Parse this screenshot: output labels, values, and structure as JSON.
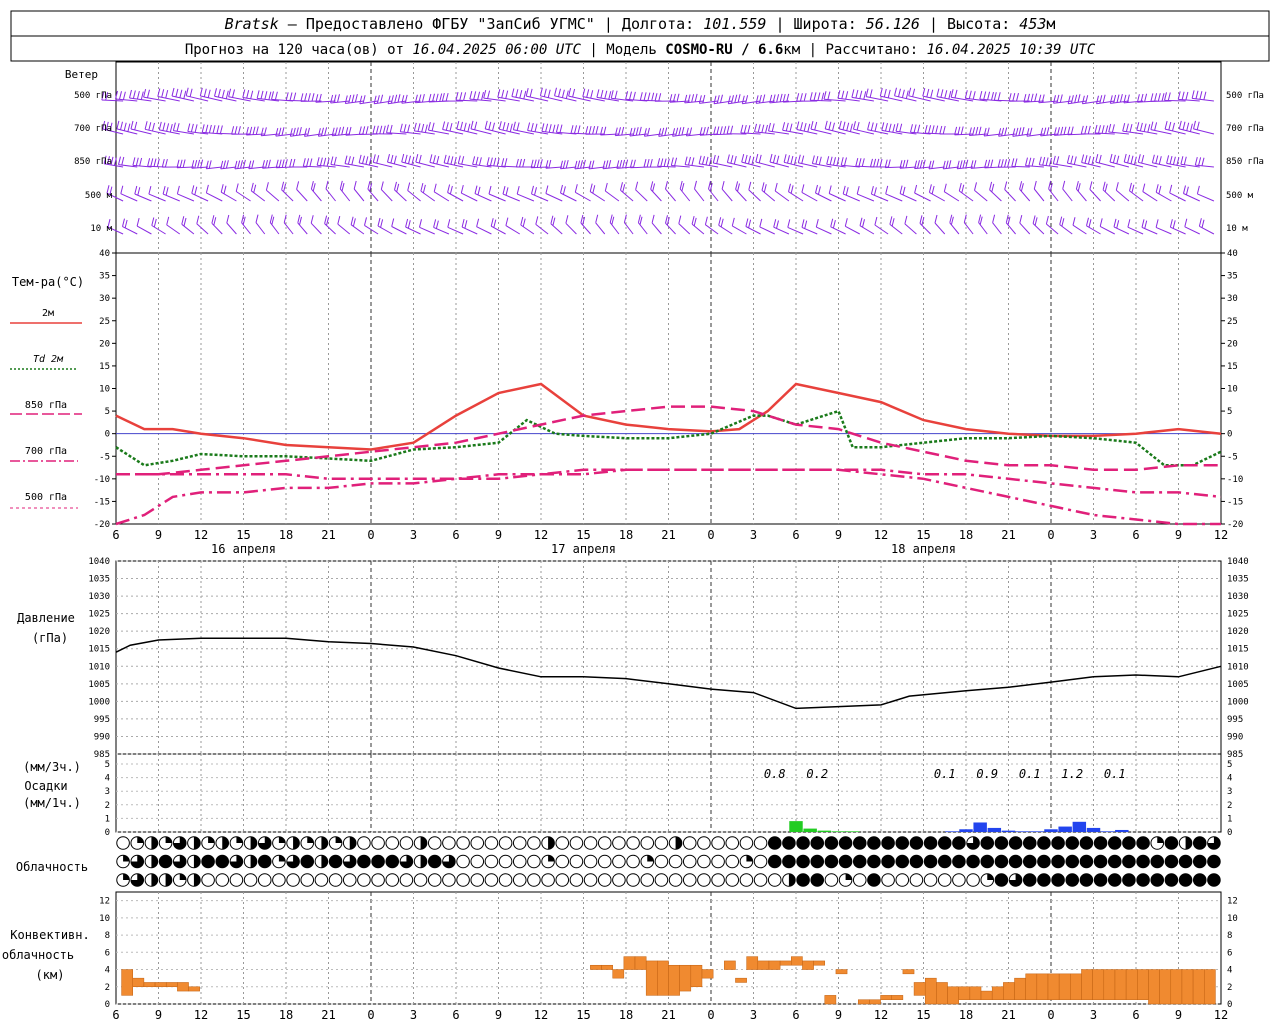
{
  "header": {
    "station": "Bratsk",
    "line1_rest": " — Предоставлено ФГБУ \"ЗапСиб УГМС\" | Долгота: ",
    "longitude": "101.559",
    "lat_label": " | Широта: ",
    "latitude": "56.126",
    "alt_label": " | Высота: ",
    "altitude": "453",
    "alt_unit": "м",
    "line2_a": "Прогноз на 120 часа(ов) от ",
    "forecast_from": "16.04.2025 06:00 UTC",
    "line2_b": "  | Модель ",
    "model": "COSMO-RU / 6.6",
    "model_unit": "км",
    "line2_c": " | Рассчитано: ",
    "computed": "16.04.2025 10:39 UTC"
  },
  "labels": {
    "wind": "Ветер",
    "temperature": "Тем-ра(°С)",
    "pressure_1": "Давление",
    "pressure_2": "(гПа)",
    "precip_1": "(мм/3ч.)",
    "precip_2": "Осадки",
    "precip_3": "(мм/1ч.)",
    "cloudiness": "Облачность",
    "convective_1": "Конвективн.",
    "convective_2": "облачность",
    "convective_3": "(км)"
  },
  "dates": [
    "16 апреля",
    "17 апреля",
    "18 апреля"
  ],
  "colors": {
    "t2m": "#e8413c",
    "td2m": "#1a7a1a",
    "t850": "#e0207a",
    "t700": "#e0207a",
    "t500": "#e0207a",
    "wind": "#8a2be2",
    "pressure": "#000000",
    "precip_green": "#22cc22",
    "precip_blue": "#2244ee",
    "convective": "#f08a30",
    "zero_line": "#4444cc"
  },
  "chart_data": [
    {
      "type": "barbs",
      "levels": [
        "500 гПа",
        "700 гПа",
        "850 гПа",
        "500 м",
        "10 м"
      ]
    },
    {
      "type": "line",
      "ylim": [
        -20,
        40
      ],
      "y_ticks": [
        -20,
        -15,
        -10,
        -5,
        0,
        5,
        10,
        15,
        20,
        25,
        30,
        35,
        40
      ],
      "x_hours": [
        0,
        3,
        6,
        9,
        12,
        15,
        18,
        21,
        24,
        27,
        30,
        33,
        36,
        39,
        42,
        45,
        48,
        51,
        54,
        57,
        60,
        63,
        66,
        69,
        72,
        75,
        78
      ],
      "x_tick_labels": [
        "6",
        "9",
        "12",
        "15",
        "18",
        "21",
        "0",
        "3",
        "6",
        "9",
        "12",
        "15",
        "18",
        "21",
        "0",
        "3",
        "6",
        "9",
        "12",
        "15",
        "18",
        "21",
        "0",
        "3",
        "6",
        "9",
        "12"
      ],
      "series": [
        {
          "name": "2м",
          "x": [
            0,
            2,
            4,
            6,
            9,
            12,
            15,
            18,
            21,
            24,
            27,
            30,
            33,
            36,
            39,
            42,
            44,
            46,
            48,
            51,
            54,
            57,
            60,
            63,
            66,
            69,
            72,
            75,
            78
          ],
          "values": [
            4,
            1,
            1,
            0,
            -1,
            -2.5,
            -3,
            -3.5,
            -2,
            4,
            9,
            11,
            4,
            2,
            1,
            0.5,
            1,
            5,
            11,
            9,
            7,
            3,
            1,
            0,
            -0.5,
            -0.5,
            0,
            1,
            0
          ]
        },
        {
          "name": "Td 2м",
          "x": [
            0,
            2,
            4,
            6,
            9,
            12,
            15,
            18,
            21,
            24,
            27,
            29,
            31,
            33,
            36,
            39,
            42,
            45,
            46,
            48,
            50,
            51,
            52,
            54,
            57,
            60,
            63,
            66,
            69,
            72,
            74,
            76,
            78
          ],
          "values": [
            -3,
            -7,
            -6,
            -4.5,
            -5,
            -5,
            -5.5,
            -6,
            -3.5,
            -3,
            -2,
            3,
            0,
            -0.5,
            -1,
            -1,
            0,
            4,
            4,
            2,
            4,
            5,
            -3,
            -3,
            -2,
            -1,
            -1,
            -0.5,
            -1,
            -2,
            -7,
            -7,
            -4
          ]
        },
        {
          "name": "850 гПа",
          "x": [
            0,
            3,
            6,
            9,
            12,
            15,
            18,
            21,
            24,
            27,
            30,
            33,
            36,
            39,
            42,
            45,
            48,
            51,
            54,
            57,
            60,
            63,
            66,
            69,
            72,
            75,
            78
          ],
          "values": [
            -9,
            -9,
            -8,
            -7,
            -6,
            -5,
            -4,
            -3,
            -2,
            0,
            2,
            4,
            5,
            6,
            6,
            5,
            2,
            1,
            -2,
            -4,
            -6,
            -7,
            -7,
            -8,
            -8,
            -7,
            -7
          ]
        },
        {
          "name": "700 гПа",
          "x": [
            0,
            3,
            6,
            9,
            12,
            15,
            18,
            21,
            24,
            27,
            30,
            33,
            36,
            39,
            42,
            45,
            48,
            51,
            54,
            57,
            60,
            63,
            66,
            69,
            72,
            75,
            78
          ],
          "values": [
            -9,
            -9,
            -9,
            -9,
            -9,
            -10,
            -10,
            -10,
            -10,
            -9,
            -9,
            -8,
            -8,
            -8,
            -8,
            -8,
            -8,
            -8,
            -8,
            -9,
            -9,
            -10,
            -11,
            -12,
            -13,
            -13,
            -14
          ]
        },
        {
          "name": "500 гПа",
          "x": [
            0,
            2,
            4,
            6,
            9,
            12,
            15,
            18,
            21,
            24,
            27,
            30,
            33,
            36,
            39,
            42,
            45,
            48,
            51,
            54,
            57,
            60,
            63,
            66,
            69,
            72,
            75,
            78
          ],
          "values": [
            -22,
            -18,
            -14,
            -13,
            -13,
            -12,
            -12,
            -11,
            -11,
            -10,
            -10,
            -9,
            -9,
            -8,
            -8,
            -8,
            -8,
            -8,
            -8,
            -9,
            -10,
            -12,
            -14,
            -16,
            -18,
            -19,
            -20,
            -20
          ]
        }
      ]
    },
    {
      "type": "line",
      "ylim": [
        985,
        1040
      ],
      "y_ticks": [
        985,
        990,
        995,
        1000,
        1005,
        1010,
        1015,
        1020,
        1025,
        1030,
        1035,
        1040
      ],
      "series": [
        {
          "name": "pressure",
          "x": [
            0,
            1,
            3,
            6,
            9,
            12,
            15,
            18,
            21,
            24,
            27,
            30,
            33,
            36,
            39,
            42,
            45,
            48,
            51,
            54,
            56,
            60,
            63,
            66,
            69,
            72,
            75,
            78
          ],
          "values": [
            1014,
            1016,
            1017.5,
            1018,
            1018,
            1018,
            1017,
            1016.5,
            1015.5,
            1013,
            1009.5,
            1007,
            1007,
            1006.5,
            1005,
            1003.5,
            1002.5,
            998,
            998.5,
            999,
            1001.5,
            1003,
            1004,
            1005.5,
            1007,
            1007.5,
            1007,
            1010
          ]
        }
      ]
    },
    {
      "type": "bar",
      "ylim": [
        0,
        5
      ],
      "y_ticks": [
        0,
        1,
        2,
        3,
        4,
        5
      ],
      "labels_3h": [
        {
          "x": 46.5,
          "text": "0.8"
        },
        {
          "x": 49.5,
          "text": "0.2"
        },
        {
          "x": 58.5,
          "text": "0.1"
        },
        {
          "x": 61.5,
          "text": "0.9"
        },
        {
          "x": 64.5,
          "text": "0.1"
        },
        {
          "x": 67.5,
          "text": "1.2"
        },
        {
          "x": 70.5,
          "text": "0.1"
        }
      ],
      "hourly_green": {
        "x": [
          48,
          49,
          50,
          51,
          52
        ],
        "values": [
          0.8,
          0.25,
          0.1,
          0.05,
          0.05
        ]
      },
      "hourly_blue": {
        "x": [
          59,
          60,
          61,
          62,
          63,
          64,
          65,
          66,
          67,
          68,
          69,
          70,
          71
        ],
        "values": [
          0.05,
          0.2,
          0.7,
          0.3,
          0.1,
          0.05,
          0.05,
          0.2,
          0.4,
          0.75,
          0.3,
          0.05,
          0.15
        ]
      }
    },
    {
      "type": "table",
      "rows": 3,
      "note": "cloud cover symbols: 0=clear,1=quarter,2=half,3=three-quarters,4=overcast"
    },
    {
      "type": "bar",
      "ylim": [
        0,
        13
      ],
      "y_ticks": [
        0,
        2,
        4,
        6,
        8,
        10,
        12
      ],
      "segments": [
        {
          "x": 1,
          "base": 1,
          "top": 4
        },
        {
          "x": 2,
          "base": 2,
          "top": 3
        },
        {
          "x": 3,
          "base": 2,
          "top": 2.5
        },
        {
          "x": 4,
          "base": 2,
          "top": 2.5
        },
        {
          "x": 5,
          "base": 2,
          "top": 2.5
        },
        {
          "x": 6,
          "base": 1.5,
          "top": 2.5
        },
        {
          "x": 7,
          "base": 1.5,
          "top": 2
        },
        {
          "x": 43,
          "base": 4,
          "top": 4.5
        },
        {
          "x": 44,
          "base": 4,
          "top": 4.5
        },
        {
          "x": 45,
          "base": 3,
          "top": 4
        },
        {
          "x": 46,
          "base": 4,
          "top": 5.5
        },
        {
          "x": 47,
          "base": 4,
          "top": 5.5
        },
        {
          "x": 48,
          "base": 1,
          "top": 5
        },
        {
          "x": 49,
          "base": 1,
          "top": 5
        },
        {
          "x": 50,
          "base": 1,
          "top": 4.5
        },
        {
          "x": 51,
          "base": 1.5,
          "top": 4.5
        },
        {
          "x": 52,
          "base": 2,
          "top": 4.5
        },
        {
          "x": 53,
          "base": 3,
          "top": 4
        },
        {
          "x": 55,
          "base": 4,
          "top": 5
        },
        {
          "x": 56,
          "base": 2.5,
          "top": 3
        },
        {
          "x": 57,
          "base": 4,
          "top": 5.5
        },
        {
          "x": 58,
          "base": 4,
          "top": 5
        },
        {
          "x": 59,
          "base": 4,
          "top": 5
        },
        {
          "x": 60,
          "base": 4.5,
          "top": 5
        },
        {
          "x": 61,
          "base": 4.5,
          "top": 5.5
        },
        {
          "x": 62,
          "base": 4,
          "top": 5
        },
        {
          "x": 63,
          "base": 4.5,
          "top": 5
        },
        {
          "x": 64,
          "base": 0,
          "top": 1
        },
        {
          "x": 65,
          "base": 3.5,
          "top": 4
        },
        {
          "x": 67,
          "base": 0,
          "top": 0.5
        },
        {
          "x": 68,
          "base": 0,
          "top": 0.5
        },
        {
          "x": 69,
          "base": 0.5,
          "top": 1
        },
        {
          "x": 70,
          "base": 0.5,
          "top": 1
        },
        {
          "x": 71,
          "base": 3.5,
          "top": 4
        },
        {
          "x": 72,
          "base": 1,
          "top": 2.5
        },
        {
          "x": 73,
          "base": 0,
          "top": 3
        },
        {
          "x": 74,
          "base": 0,
          "top": 2.5
        },
        {
          "x": 75,
          "base": 0,
          "top": 2
        },
        {
          "x": 76,
          "base": 0.5,
          "top": 2
        },
        {
          "x": 77,
          "base": 0.5,
          "top": 2
        },
        {
          "x": 78,
          "base": 0.5,
          "top": 1.5
        },
        {
          "x": 79,
          "base": 0.5,
          "top": 2
        },
        {
          "x": 80,
          "base": 0.5,
          "top": 2.5
        },
        {
          "x": 81,
          "base": 0.5,
          "top": 3
        },
        {
          "x": 82,
          "base": 0.5,
          "top": 3.5
        },
        {
          "x": 83,
          "base": 0.5,
          "top": 3.5
        },
        {
          "x": 84,
          "base": 0.5,
          "top": 3.5
        },
        {
          "x": 85,
          "base": 0.5,
          "top": 3.5
        },
        {
          "x": 86,
          "base": 0.5,
          "top": 3.5
        },
        {
          "x": 87,
          "base": 0.5,
          "top": 4
        },
        {
          "x": 88,
          "base": 0.5,
          "top": 4
        },
        {
          "x": 89,
          "base": 0.5,
          "top": 4
        },
        {
          "x": 90,
          "base": 0.5,
          "top": 4
        },
        {
          "x": 91,
          "base": 0.5,
          "top": 4
        },
        {
          "x": 92,
          "base": 0.5,
          "top": 4
        },
        {
          "x": 93,
          "base": 0,
          "top": 4
        },
        {
          "x": 94,
          "base": 0,
          "top": 4
        },
        {
          "x": 95,
          "base": 0,
          "top": 4
        },
        {
          "x": 96,
          "base": 0,
          "top": 4
        },
        {
          "x": 97,
          "base": 0,
          "top": 4
        },
        {
          "x": 98,
          "base": 0,
          "top": 4
        }
      ]
    }
  ]
}
